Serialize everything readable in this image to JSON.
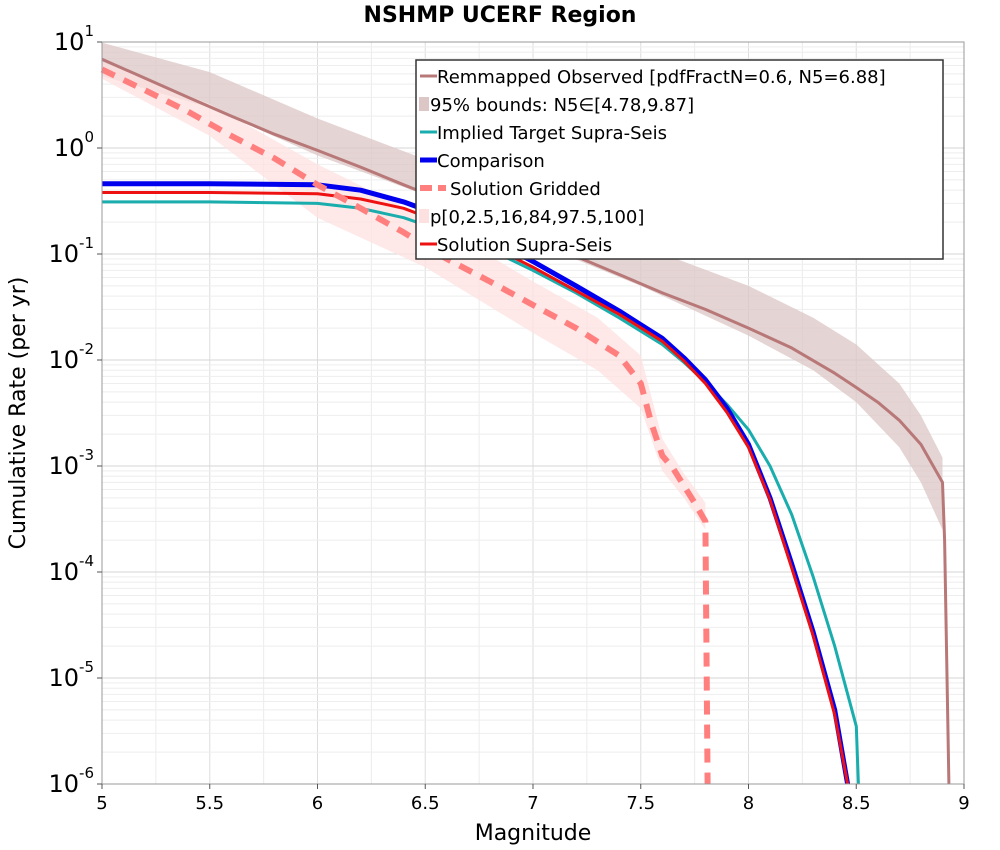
{
  "chart_data": {
    "type": "line",
    "title": "NSHMP UCERF Region",
    "xlabel": "Magnitude",
    "ylabel": "Cumulative Rate (per yr)",
    "xlim": [
      5,
      9
    ],
    "ylim": [
      1e-06,
      10
    ],
    "yscale": "log",
    "grid": true,
    "legend_position": "top-right",
    "x_ticks": [
      "5",
      "5.5",
      "6",
      "6.5",
      "7",
      "7.5",
      "8",
      "8.5",
      "9"
    ],
    "y_ticks": [
      {
        "base": "10",
        "exp": "-6"
      },
      {
        "base": "10",
        "exp": "-5"
      },
      {
        "base": "10",
        "exp": "-4"
      },
      {
        "base": "10",
        "exp": "-3"
      },
      {
        "base": "10",
        "exp": "-2"
      },
      {
        "base": "10",
        "exp": "-1"
      },
      {
        "base": "10",
        "exp": "0"
      },
      {
        "base": "10",
        "exp": "1"
      }
    ],
    "legend": [
      "Remmapped Observed [pdfFractN=0.6, N5=6.88]",
      "95% bounds: N5∈[4.78,9.87]",
      "Implied Target Supra-Seis",
      "Comparison",
      "Solution Gridded",
      "p[0,2.5,16,84,97.5,100]",
      "Solution Supra-Seis"
    ],
    "series": [
      {
        "name": "Remmapped Observed [pdfFractN=0.6, N5=6.88]",
        "color": "#b87878",
        "width": 3,
        "x": [
          5.0,
          5.2,
          5.4,
          5.6,
          5.8,
          6.0,
          6.2,
          6.4,
          6.6,
          6.8,
          7.0,
          7.2,
          7.4,
          7.6,
          7.8,
          8.0,
          8.2,
          8.4,
          8.5,
          8.6,
          8.7,
          8.8,
          8.9,
          8.91,
          8.93
        ],
        "y": [
          6.88,
          4.55,
          3.0,
          2.0,
          1.35,
          0.95,
          0.66,
          0.45,
          0.31,
          0.21,
          0.14,
          0.095,
          0.064,
          0.043,
          0.03,
          0.02,
          0.013,
          0.0075,
          0.0055,
          0.004,
          0.0027,
          0.0016,
          0.0007,
          0.0002,
          1e-06
        ]
      },
      {
        "name": "Implied Target Supra-Seis",
        "color": "#1aadad",
        "width": 3,
        "x": [
          5.0,
          5.5,
          6.0,
          6.2,
          6.4,
          6.6,
          6.8,
          7.0,
          7.2,
          7.4,
          7.6,
          7.7,
          7.8,
          7.9,
          8.0,
          8.1,
          8.2,
          8.3,
          8.4,
          8.5,
          8.51
        ],
        "y": [
          0.31,
          0.31,
          0.3,
          0.27,
          0.22,
          0.16,
          0.11,
          0.07,
          0.043,
          0.025,
          0.014,
          0.0095,
          0.0062,
          0.0038,
          0.0022,
          0.001,
          0.00035,
          9e-05,
          2e-05,
          3.5e-06,
          1e-06
        ]
      },
      {
        "name": "Comparison",
        "color": "#0000ee",
        "width": 5,
        "x": [
          5.0,
          5.5,
          6.0,
          6.2,
          6.4,
          6.6,
          6.8,
          7.0,
          7.2,
          7.4,
          7.6,
          7.7,
          7.8,
          7.9,
          8.0,
          8.1,
          8.2,
          8.3,
          8.4,
          8.46
        ],
        "y": [
          0.46,
          0.46,
          0.45,
          0.4,
          0.31,
          0.22,
          0.14,
          0.085,
          0.05,
          0.029,
          0.016,
          0.0105,
          0.0065,
          0.0035,
          0.0016,
          0.0005,
          0.00012,
          2.7e-05,
          5e-06,
          1e-06
        ]
      },
      {
        "name": "Solution Supra-Seis",
        "color": "#ee1111",
        "width": 3,
        "x": [
          5.0,
          5.5,
          6.0,
          6.2,
          6.4,
          6.6,
          6.8,
          7.0,
          7.2,
          7.4,
          7.6,
          7.7,
          7.8,
          7.9,
          8.0,
          8.1,
          8.2,
          8.3,
          8.4,
          8.46
        ],
        "y": [
          0.38,
          0.38,
          0.37,
          0.33,
          0.27,
          0.19,
          0.12,
          0.075,
          0.045,
          0.027,
          0.015,
          0.0098,
          0.006,
          0.0032,
          0.0015,
          0.00048,
          0.00011,
          2.5e-05,
          4.5e-06,
          1e-06
        ]
      },
      {
        "name": "Solution Gridded",
        "color": "#ff7f7f",
        "width": 6,
        "dash": "14,10",
        "x": [
          5.0,
          5.2,
          5.4,
          5.6,
          5.8,
          6.0,
          6.2,
          6.4,
          6.6,
          6.8,
          7.0,
          7.2,
          7.4,
          7.5,
          7.55,
          7.6,
          7.65,
          7.7,
          7.75,
          7.8,
          7.81
        ],
        "y": [
          5.5,
          3.5,
          2.2,
          1.3,
          0.8,
          0.45,
          0.27,
          0.16,
          0.09,
          0.055,
          0.033,
          0.02,
          0.011,
          0.006,
          0.0025,
          0.00125,
          0.00095,
          0.00065,
          0.00045,
          0.0003,
          1e-06
        ]
      }
    ],
    "bands": [
      {
        "name": "95% bounds: N5∈[4.78,9.87]",
        "color": "#dcc6c6",
        "x": [
          5.0,
          5.5,
          6.0,
          6.5,
          7.0,
          7.5,
          8.0,
          8.3,
          8.5,
          8.7,
          8.8,
          8.9
        ],
        "lower": [
          4.78,
          2.4,
          0.85,
          0.36,
          0.13,
          0.05,
          0.017,
          0.008,
          0.004,
          0.0015,
          0.0007,
          0.00025
        ],
        "upper": [
          9.87,
          5.2,
          1.9,
          0.78,
          0.31,
          0.12,
          0.05,
          0.025,
          0.014,
          0.006,
          0.003,
          0.0012
        ]
      },
      {
        "name": "p[0,2.5,16,84,97.5,100]",
        "color": "#fde0e0",
        "x": [
          5.0,
          5.5,
          6.0,
          6.5,
          7.0,
          7.3,
          7.5,
          7.6,
          7.7,
          7.8
        ],
        "lower": [
          4.5,
          1.3,
          0.22,
          0.075,
          0.018,
          0.008,
          0.0035,
          0.0009,
          0.0005,
          0.00025
        ],
        "upper": [
          6.5,
          2.6,
          0.7,
          0.22,
          0.055,
          0.025,
          0.011,
          0.0018,
          0.00085,
          0.00045
        ]
      }
    ]
  }
}
